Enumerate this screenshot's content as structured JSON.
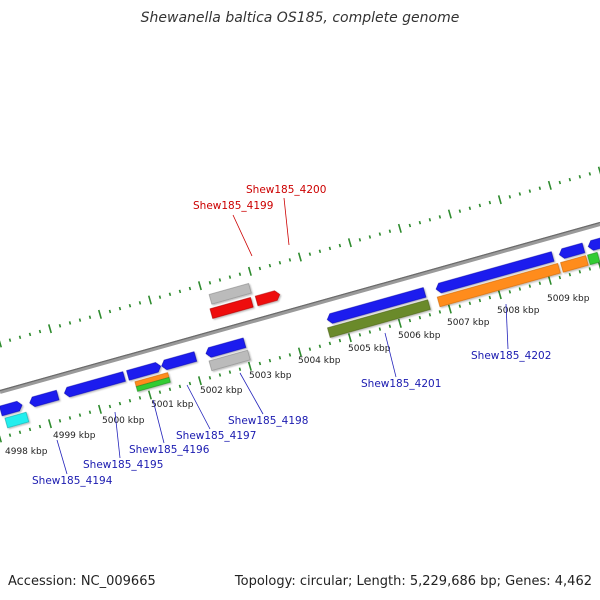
{
  "title": "Shewanella baltica OS185, complete genome",
  "footer": {
    "accession": "Accession: NC_009665",
    "summary": "Topology: circular; Length: 5,229,686 bp; Genes: 4,462"
  },
  "colors": {
    "cds_blue": "#1a1aee",
    "red_feature": "#ee1111",
    "gray_feature": "#bbbbbb",
    "olive_feature": "#6b8a2a",
    "orange_feature": "#ff8c1a",
    "green_feature": "#33cc33",
    "cyan_feature": "#22eeee",
    "ruler_green": "#2e8b2e",
    "backbone": "#808080",
    "label_blue": "#1a1ab0",
    "label_red": "#cc0000"
  },
  "scale_labels": [
    "4998 kbp",
    "4999 kbp",
    "5000 kbp",
    "5001 kbp",
    "5002 kbp",
    "5003 kbp",
    "5004 kbp",
    "5005 kbp",
    "5006 kbp",
    "5007 kbp",
    "5008 kbp",
    "5009 kbp"
  ],
  "gene_labels": {
    "g4194": "Shew185_4194",
    "g4195": "Shew185_4195",
    "g4196": "Shew185_4196",
    "g4197": "Shew185_4197",
    "g4198": "Shew185_4198",
    "g4199": "Shew185_4199",
    "g4200": "Shew185_4200",
    "g4201": "Shew185_4201",
    "g4202": "Shew185_4202"
  }
}
